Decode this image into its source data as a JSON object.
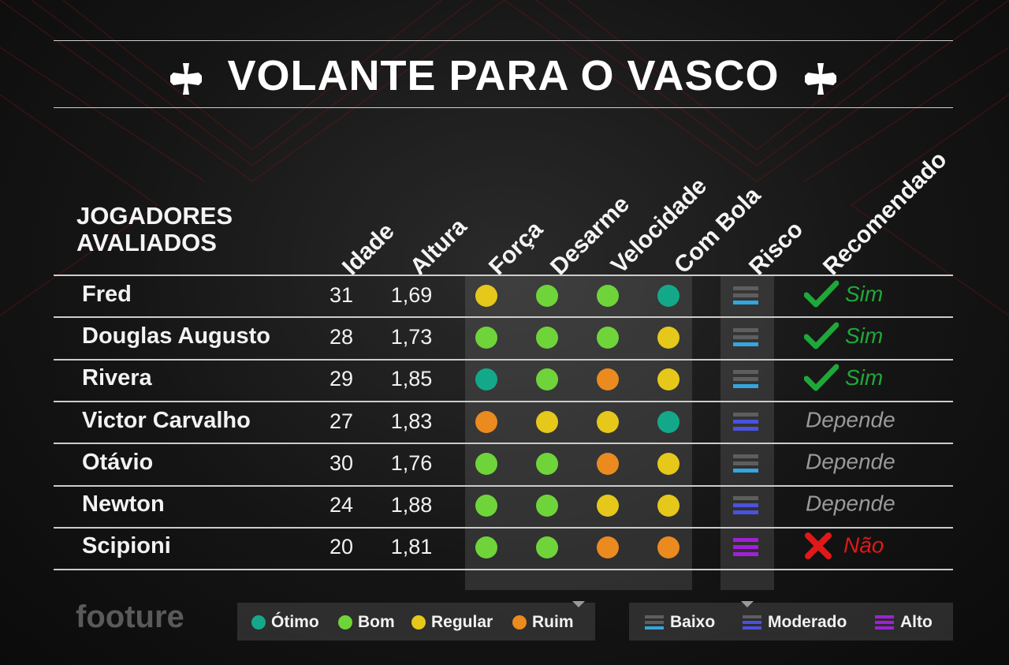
{
  "title": "VOLANTE PARA O VASCO",
  "colors": {
    "otimo": "#14a88a",
    "bom": "#6fd43a",
    "regular": "#e5c81a",
    "ruim": "#ea8a1f",
    "risk_baixo": "#33a6e0",
    "risk_moderado": "#4a52e0",
    "risk_alto": "#a020d8",
    "sim": "#1fa83a",
    "nao": "#e01818",
    "depende": "#9a9a9a"
  },
  "header": {
    "players": "JOGADORES AVALIADOS",
    "players_line1": "JOGADORES",
    "players_line2": "AVALIADOS",
    "columns": [
      "Idade",
      "Altura",
      "Força",
      "Desarme",
      "Velocidade",
      "Com Bola",
      "Risco",
      "Recomendado"
    ]
  },
  "players": [
    {
      "name": "Fred",
      "idade": "31",
      "altura": "1,69",
      "forca": "regular",
      "desarme": "bom",
      "velocidade": "bom",
      "com_bola": "otimo",
      "risco": "baixo",
      "recomendado": "Sim"
    },
    {
      "name": "Douglas Augusto",
      "idade": "28",
      "altura": "1,73",
      "forca": "bom",
      "desarme": "bom",
      "velocidade": "bom",
      "com_bola": "regular",
      "risco": "baixo",
      "recomendado": "Sim"
    },
    {
      "name": "Rivera",
      "idade": "29",
      "altura": "1,85",
      "forca": "otimo",
      "desarme": "bom",
      "velocidade": "ruim",
      "com_bola": "regular",
      "risco": "baixo",
      "recomendado": "Sim"
    },
    {
      "name": "Victor Carvalho",
      "idade": "27",
      "altura": "1,83",
      "forca": "ruim",
      "desarme": "regular",
      "velocidade": "regular",
      "com_bola": "otimo",
      "risco": "moderado",
      "recomendado": "Depende"
    },
    {
      "name": "Otávio",
      "idade": "30",
      "altura": "1,76",
      "forca": "bom",
      "desarme": "bom",
      "velocidade": "ruim",
      "com_bola": "regular",
      "risco": "baixo",
      "recomendado": "Depende"
    },
    {
      "name": "Newton",
      "idade": "24",
      "altura": "1,88",
      "forca": "bom",
      "desarme": "bom",
      "velocidade": "regular",
      "com_bola": "regular",
      "risco": "moderado",
      "recomendado": "Depende"
    },
    {
      "name": "Scipioni",
      "idade": "20",
      "altura": "1,81",
      "forca": "bom",
      "desarme": "bom",
      "velocidade": "ruim",
      "com_bola": "ruim",
      "risco": "alto",
      "recomendado": "Não"
    }
  ],
  "legend_ratings": [
    {
      "key": "otimo",
      "label": "Ótimo"
    },
    {
      "key": "bom",
      "label": "Bom"
    },
    {
      "key": "regular",
      "label": "Regular"
    },
    {
      "key": "ruim",
      "label": "Ruim"
    }
  ],
  "legend_risk": [
    {
      "key": "baixo",
      "label": "Baixo"
    },
    {
      "key": "moderado",
      "label": "Moderado"
    },
    {
      "key": "alto",
      "label": "Alto"
    }
  ],
  "logo": "footure"
}
